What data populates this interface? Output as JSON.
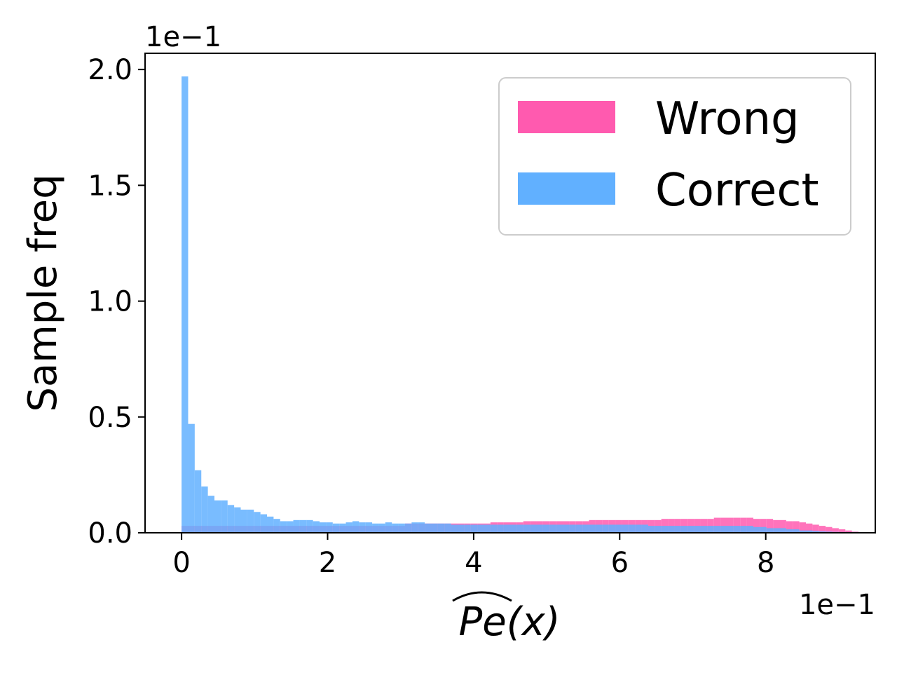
{
  "chart_data": {
    "type": "bar",
    "xlabel": "Pe(x)",
    "ylabel": "Sample freq",
    "x_offset_label": "1e−1",
    "y_offset_label": "1e−1",
    "xlim": [
      -0.5,
      9.5
    ],
    "ylim": [
      0.0,
      2.07
    ],
    "x_ticks": [
      0,
      2,
      4,
      6,
      8
    ],
    "x_tick_labels": [
      "0",
      "2",
      "4",
      "6",
      "8"
    ],
    "y_ticks": [
      0.0,
      0.5,
      1.0,
      1.5,
      2.0
    ],
    "y_tick_labels": [
      "0.0",
      "0.5",
      "1.0",
      "1.5",
      "2.0"
    ],
    "bin_start": 0.0,
    "bin_width": 0.09,
    "legend_position": "top-right",
    "series": [
      {
        "name": "Wrong",
        "color": "#ff5aaf",
        "values": [
          0.03,
          0.03,
          0.03,
          0.03,
          0.03,
          0.03,
          0.03,
          0.03,
          0.03,
          0.03,
          0.03,
          0.03,
          0.03,
          0.03,
          0.03,
          0.03,
          0.03,
          0.03,
          0.03,
          0.03,
          0.03,
          0.03,
          0.03,
          0.03,
          0.03,
          0.03,
          0.03,
          0.03,
          0.03,
          0.03,
          0.03,
          0.03,
          0.03,
          0.03,
          0.04,
          0.04,
          0.04,
          0.04,
          0.04,
          0.04,
          0.04,
          0.04,
          0.04,
          0.04,
          0.04,
          0.04,
          0.04,
          0.045,
          0.045,
          0.045,
          0.045,
          0.045,
          0.05,
          0.05,
          0.05,
          0.05,
          0.05,
          0.05,
          0.05,
          0.05,
          0.05,
          0.05,
          0.055,
          0.055,
          0.055,
          0.055,
          0.055,
          0.055,
          0.055,
          0.055,
          0.055,
          0.055,
          0.055,
          0.06,
          0.06,
          0.06,
          0.06,
          0.06,
          0.06,
          0.06,
          0.06,
          0.065,
          0.065,
          0.065,
          0.065,
          0.065,
          0.065,
          0.06,
          0.06,
          0.06,
          0.055,
          0.055,
          0.05,
          0.05,
          0.045,
          0.04,
          0.035,
          0.03,
          0.025,
          0.02,
          0.015,
          0.01,
          0.005
        ]
      },
      {
        "name": "Correct",
        "color": "#61b0ff",
        "values": [
          1.97,
          0.47,
          0.27,
          0.2,
          0.16,
          0.14,
          0.14,
          0.12,
          0.11,
          0.1,
          0.1,
          0.09,
          0.08,
          0.07,
          0.06,
          0.05,
          0.05,
          0.055,
          0.055,
          0.055,
          0.05,
          0.045,
          0.045,
          0.04,
          0.04,
          0.045,
          0.05,
          0.045,
          0.045,
          0.04,
          0.04,
          0.045,
          0.04,
          0.04,
          0.04,
          0.045,
          0.045,
          0.04,
          0.04,
          0.04,
          0.04,
          0.035,
          0.035,
          0.035,
          0.035,
          0.035,
          0.035,
          0.035,
          0.035,
          0.035,
          0.035,
          0.035,
          0.035,
          0.035,
          0.035,
          0.035,
          0.035,
          0.035,
          0.035,
          0.035,
          0.035,
          0.035,
          0.035,
          0.035,
          0.035,
          0.035,
          0.035,
          0.035,
          0.035,
          0.035,
          0.035,
          0.03,
          0.03,
          0.03,
          0.03,
          0.03,
          0.03,
          0.03,
          0.03,
          0.03,
          0.03,
          0.03,
          0.03,
          0.03,
          0.03,
          0.03,
          0.03,
          0.025,
          0.025,
          0.02,
          0.02,
          0.02,
          0.015,
          0.015,
          0.01,
          0.01,
          0.008,
          0.006,
          0.005,
          0.004,
          0.003
        ]
      }
    ]
  }
}
